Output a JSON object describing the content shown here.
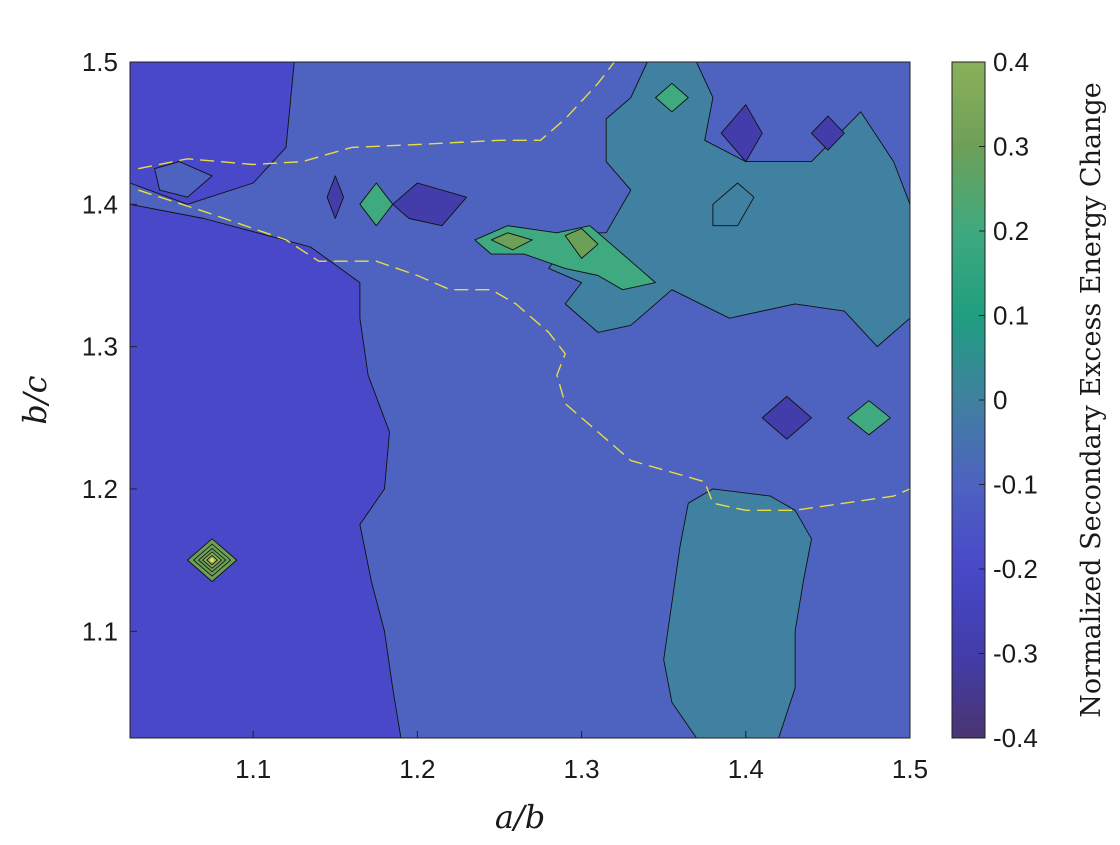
{
  "chart_data": {
    "type": "heatmap",
    "subtype": "filled-contour",
    "xlabel": "a/b",
    "ylabel": "b/c",
    "colorbar_label": "Normalized Secondary Excess Energy Change",
    "xlim": [
      1.025,
      1.5
    ],
    "ylim": [
      1.025,
      1.5
    ],
    "x_ticks": [
      "1.1",
      "1.2",
      "1.3",
      "1.4",
      "1.5"
    ],
    "x_tick_values": [
      1.1,
      1.2,
      1.3,
      1.4,
      1.5
    ],
    "y_ticks": [
      "1.1",
      "1.2",
      "1.3",
      "1.4",
      "1.5"
    ],
    "y_tick_values": [
      1.1,
      1.2,
      1.3,
      1.4,
      1.5
    ],
    "colorbar_ticks": [
      "-0.4",
      "-0.3",
      "-0.2",
      "-0.1",
      "0",
      "0.1",
      "0.2",
      "0.3",
      "0.4"
    ],
    "colorbar_tick_values": [
      -0.4,
      -0.3,
      -0.2,
      -0.1,
      0,
      0.1,
      0.2,
      0.3,
      0.4
    ],
    "clim": [
      -0.4,
      0.4
    ],
    "colormap": [
      "#4a3470",
      "#423daa",
      "#4848c8",
      "#4e62c0",
      "#4080a0",
      "#1f9e7f",
      "#3fa97f",
      "#6da057",
      "#8ab05a"
    ],
    "grid": false,
    "zero_contour_style": "yellow dashed",
    "zero_contour_color": "#e6dc46",
    "regions": [
      {
        "level": -0.25,
        "points": [
          [
            1.025,
            1.5
          ],
          [
            1.125,
            1.5
          ],
          [
            1.12,
            1.44
          ],
          [
            1.1,
            1.415
          ],
          [
            1.06,
            1.4
          ],
          [
            1.025,
            1.415
          ]
        ]
      },
      {
        "level": -0.25,
        "points": [
          [
            1.025,
            1.4
          ],
          [
            1.07,
            1.39
          ],
          [
            1.135,
            1.37
          ],
          [
            1.165,
            1.345
          ],
          [
            1.165,
            1.32
          ],
          [
            1.17,
            1.28
          ],
          [
            1.183,
            1.24
          ],
          [
            1.18,
            1.2
          ],
          [
            1.165,
            1.175
          ],
          [
            1.172,
            1.135
          ],
          [
            1.18,
            1.1
          ],
          [
            1.185,
            1.06
          ],
          [
            1.19,
            1.025
          ],
          [
            1.025,
            1.025
          ]
        ]
      },
      {
        "level": -0.15,
        "points": [
          [
            1.04,
            1.425
          ],
          [
            1.055,
            1.43
          ],
          [
            1.075,
            1.42
          ],
          [
            1.06,
            1.405
          ],
          [
            1.043,
            1.41
          ]
        ]
      },
      {
        "level": -0.05,
        "points": [
          [
            1.34,
            1.5
          ],
          [
            1.37,
            1.5
          ],
          [
            1.38,
            1.475
          ],
          [
            1.375,
            1.445
          ],
          [
            1.4,
            1.43
          ],
          [
            1.44,
            1.43
          ],
          [
            1.47,
            1.465
          ],
          [
            1.49,
            1.43
          ],
          [
            1.5,
            1.4
          ],
          [
            1.5,
            1.32
          ],
          [
            1.48,
            1.3
          ],
          [
            1.46,
            1.325
          ],
          [
            1.43,
            1.33
          ],
          [
            1.39,
            1.32
          ],
          [
            1.355,
            1.34
          ],
          [
            1.33,
            1.315
          ],
          [
            1.31,
            1.31
          ],
          [
            1.29,
            1.33
          ],
          [
            1.3,
            1.345
          ],
          [
            1.28,
            1.355
          ],
          [
            1.295,
            1.38
          ],
          [
            1.315,
            1.38
          ],
          [
            1.33,
            1.41
          ],
          [
            1.315,
            1.43
          ],
          [
            1.315,
            1.46
          ],
          [
            1.33,
            1.475
          ]
        ]
      },
      {
        "level": -0.05,
        "points": [
          [
            1.365,
            1.19
          ],
          [
            1.38,
            1.2
          ],
          [
            1.415,
            1.195
          ],
          [
            1.43,
            1.185
          ],
          [
            1.44,
            1.165
          ],
          [
            1.435,
            1.135
          ],
          [
            1.43,
            1.1
          ],
          [
            1.43,
            1.06
          ],
          [
            1.42,
            1.025
          ],
          [
            1.37,
            1.025
          ],
          [
            1.355,
            1.05
          ],
          [
            1.35,
            1.08
          ],
          [
            1.355,
            1.12
          ],
          [
            1.36,
            1.16
          ]
        ]
      },
      {
        "level": -0.05,
        "points": [
          [
            1.38,
            1.4
          ],
          [
            1.395,
            1.415
          ],
          [
            1.405,
            1.405
          ],
          [
            1.395,
            1.385
          ],
          [
            1.38,
            1.385
          ]
        ]
      },
      {
        "level": 0.15,
        "points": [
          [
            1.235,
            1.375
          ],
          [
            1.255,
            1.385
          ],
          [
            1.285,
            1.38
          ],
          [
            1.305,
            1.385
          ],
          [
            1.33,
            1.36
          ],
          [
            1.345,
            1.345
          ],
          [
            1.325,
            1.34
          ],
          [
            1.31,
            1.35
          ],
          [
            1.29,
            1.355
          ],
          [
            1.265,
            1.365
          ],
          [
            1.245,
            1.365
          ]
        ]
      },
      {
        "level": 0.25,
        "points": [
          [
            1.245,
            1.375
          ],
          [
            1.255,
            1.38
          ],
          [
            1.27,
            1.375
          ],
          [
            1.258,
            1.368
          ]
        ]
      },
      {
        "level": 0.25,
        "points": [
          [
            1.29,
            1.378
          ],
          [
            1.3,
            1.383
          ],
          [
            1.31,
            1.372
          ],
          [
            1.3,
            1.362
          ]
        ]
      },
      {
        "level": 0.15,
        "points": [
          [
            1.165,
            1.4
          ],
          [
            1.175,
            1.415
          ],
          [
            1.185,
            1.4
          ],
          [
            1.175,
            1.385
          ]
        ]
      },
      {
        "level": 0.15,
        "points": [
          [
            1.345,
            1.475
          ],
          [
            1.355,
            1.485
          ],
          [
            1.365,
            1.475
          ],
          [
            1.355,
            1.465
          ]
        ]
      },
      {
        "level": 0.15,
        "points": [
          [
            1.462,
            1.25
          ],
          [
            1.475,
            1.262
          ],
          [
            1.488,
            1.25
          ],
          [
            1.475,
            1.238
          ]
        ]
      },
      {
        "level": -0.35,
        "points": [
          [
            1.185,
            1.4
          ],
          [
            1.2,
            1.415
          ],
          [
            1.23,
            1.405
          ],
          [
            1.215,
            1.385
          ],
          [
            1.195,
            1.39
          ]
        ]
      },
      {
        "level": -0.35,
        "points": [
          [
            1.385,
            1.45
          ],
          [
            1.4,
            1.47
          ],
          [
            1.41,
            1.45
          ],
          [
            1.4,
            1.43
          ]
        ]
      },
      {
        "level": -0.35,
        "points": [
          [
            1.44,
            1.45
          ],
          [
            1.45,
            1.462
          ],
          [
            1.46,
            1.45
          ],
          [
            1.45,
            1.438
          ]
        ]
      },
      {
        "level": -0.35,
        "points": [
          [
            1.41,
            1.25
          ],
          [
            1.425,
            1.265
          ],
          [
            1.44,
            1.25
          ],
          [
            1.425,
            1.235
          ]
        ]
      },
      {
        "level": -0.3,
        "points": [
          [
            1.145,
            1.405
          ],
          [
            1.15,
            1.42
          ],
          [
            1.155,
            1.405
          ],
          [
            1.15,
            1.39
          ]
        ]
      },
      {
        "level": 0.3,
        "points": [
          [
            1.06,
            1.15
          ],
          [
            1.075,
            1.165
          ],
          [
            1.09,
            1.15
          ],
          [
            1.075,
            1.135
          ]
        ]
      }
    ],
    "zero_contour": [
      [
        1.03,
        1.425
      ],
      [
        1.06,
        1.432
      ],
      [
        1.1,
        1.428
      ],
      [
        1.13,
        1.43
      ],
      [
        1.16,
        1.44
      ],
      [
        1.2,
        1.442
      ],
      [
        1.25,
        1.445
      ],
      [
        1.275,
        1.445
      ],
      [
        1.29,
        1.46
      ],
      [
        1.31,
        1.485
      ],
      [
        1.32,
        1.5
      ]
    ],
    "zero_contour_2": [
      [
        1.03,
        1.41
      ],
      [
        1.07,
        1.395
      ],
      [
        1.12,
        1.375
      ],
      [
        1.14,
        1.36
      ],
      [
        1.175,
        1.36
      ],
      [
        1.2,
        1.35
      ],
      [
        1.22,
        1.34
      ],
      [
        1.245,
        1.34
      ],
      [
        1.26,
        1.33
      ],
      [
        1.28,
        1.31
      ],
      [
        1.29,
        1.295
      ],
      [
        1.285,
        1.28
      ],
      [
        1.29,
        1.26
      ],
      [
        1.31,
        1.24
      ],
      [
        1.33,
        1.22
      ],
      [
        1.36,
        1.21
      ],
      [
        1.375,
        1.205
      ],
      [
        1.38,
        1.19
      ],
      [
        1.4,
        1.185
      ],
      [
        1.43,
        1.185
      ],
      [
        1.46,
        1.19
      ],
      [
        1.49,
        1.195
      ],
      [
        1.5,
        1.2
      ]
    ]
  }
}
